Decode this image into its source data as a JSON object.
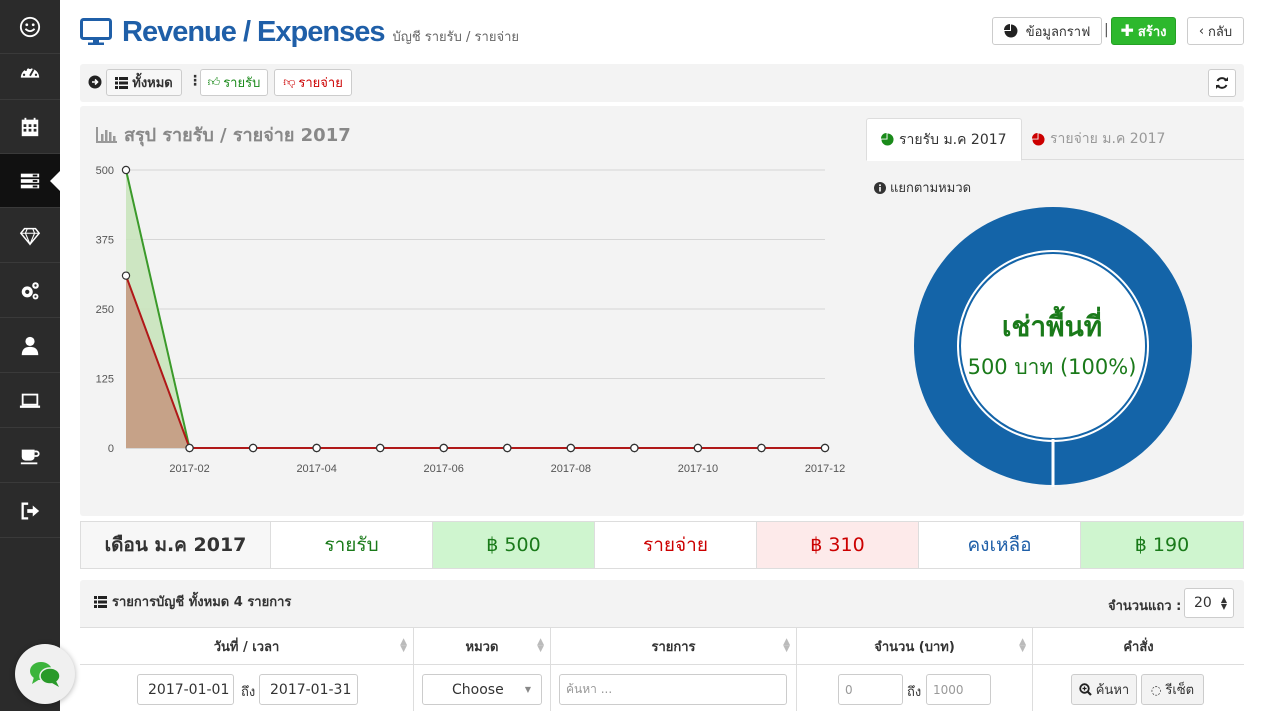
{
  "header": {
    "title": "Revenue / Expenses",
    "subtitle": "บัญชี รายรับ / รายจ่าย",
    "graph_button": "ข้อมูลกราฟ",
    "divider": "|",
    "create_button": "สร้าง",
    "back_button": "กลับ"
  },
  "sidebar": {
    "items": [
      {
        "icon": "smiley-icon"
      },
      {
        "icon": "dashboard-icon"
      },
      {
        "icon": "calendar-icon"
      },
      {
        "icon": "list-icon",
        "active": true
      },
      {
        "icon": "diamond-icon"
      },
      {
        "icon": "gears-icon"
      },
      {
        "icon": "user-icon"
      },
      {
        "icon": "laptop-icon"
      },
      {
        "icon": "coffee-icon"
      },
      {
        "icon": "sign-out-icon"
      }
    ]
  },
  "toolbar": {
    "all_label": "ทั้งหมด",
    "income_label": "รายรับ",
    "expense_label": "รายจ่าย"
  },
  "summary": {
    "chart_title": "สรุป รายรับ / รายจ่าย 2017",
    "tab_income": "รายรับ ม.ค 2017",
    "tab_expense": "รายจ่าย ม.ค 2017",
    "pie_caption": "แยกตามหมวด",
    "donut_name": "เช่าพื้นที่",
    "donut_value": "500 บาท (100%)"
  },
  "chart_data": {
    "type": "area",
    "x": [
      "2017-01",
      "2017-02",
      "2017-03",
      "2017-04",
      "2017-05",
      "2017-06",
      "2017-07",
      "2017-08",
      "2017-09",
      "2017-10",
      "2017-11",
      "2017-12"
    ],
    "x_tick_labels": [
      "2017-02",
      "2017-04",
      "2017-06",
      "2017-08",
      "2017-10",
      "2017-12"
    ],
    "y_ticks": [
      "0",
      "125",
      "250",
      "375",
      "500"
    ],
    "ylim": [
      0,
      500
    ],
    "grid": true,
    "series": [
      {
        "name": "รายรับ",
        "color": "#3b9a2a",
        "fill": "#c9e4bd",
        "values": [
          500,
          0,
          0,
          0,
          0,
          0,
          0,
          0,
          0,
          0,
          0,
          0
        ]
      },
      {
        "name": "รายจ่าย",
        "color": "#b01818",
        "fill": "#c59a82",
        "values": [
          310,
          0,
          0,
          0,
          0,
          0,
          0,
          0,
          0,
          0,
          0,
          0
        ]
      }
    ]
  },
  "donut_data": {
    "type": "pie",
    "slices": [
      {
        "label": "เช่าพื้นที่",
        "value": 500,
        "percent": 100,
        "color": "#1464a8"
      }
    ]
  },
  "month_summary": {
    "month_label": "เดือน ม.ค 2017",
    "income_label": "รายรับ",
    "income_value": "฿ 500",
    "expense_label": "รายจ่าย",
    "expense_value": "฿ 310",
    "balance_label": "คงเหลือ",
    "balance_value": "฿ 190"
  },
  "list": {
    "title": "รายการบัญชี ทั้งหมด 4 รายการ",
    "rows_label": "จำนวนแถว :",
    "rows_value": "20",
    "columns": [
      "วันที่ / เวลา",
      "หมวด",
      "รายการ",
      "จำนวน (บาท)",
      "คำสั่ง"
    ],
    "filter": {
      "date_from": "2017-01-01",
      "to_label": "ถึง",
      "date_to": "2017-01-31",
      "category": "Choose",
      "search_placeholder": "ค้นหา ...",
      "amount_from_placeholder": "0",
      "amount_to_placeholder": "1000",
      "search_button": "ค้นหา",
      "reset_button": "รีเซ็ต"
    }
  },
  "colors": {
    "brand_blue": "#1f5fa8",
    "income_green": "#1a7a1a",
    "expense_red": "#cc0000",
    "create_green": "#2db82d"
  }
}
